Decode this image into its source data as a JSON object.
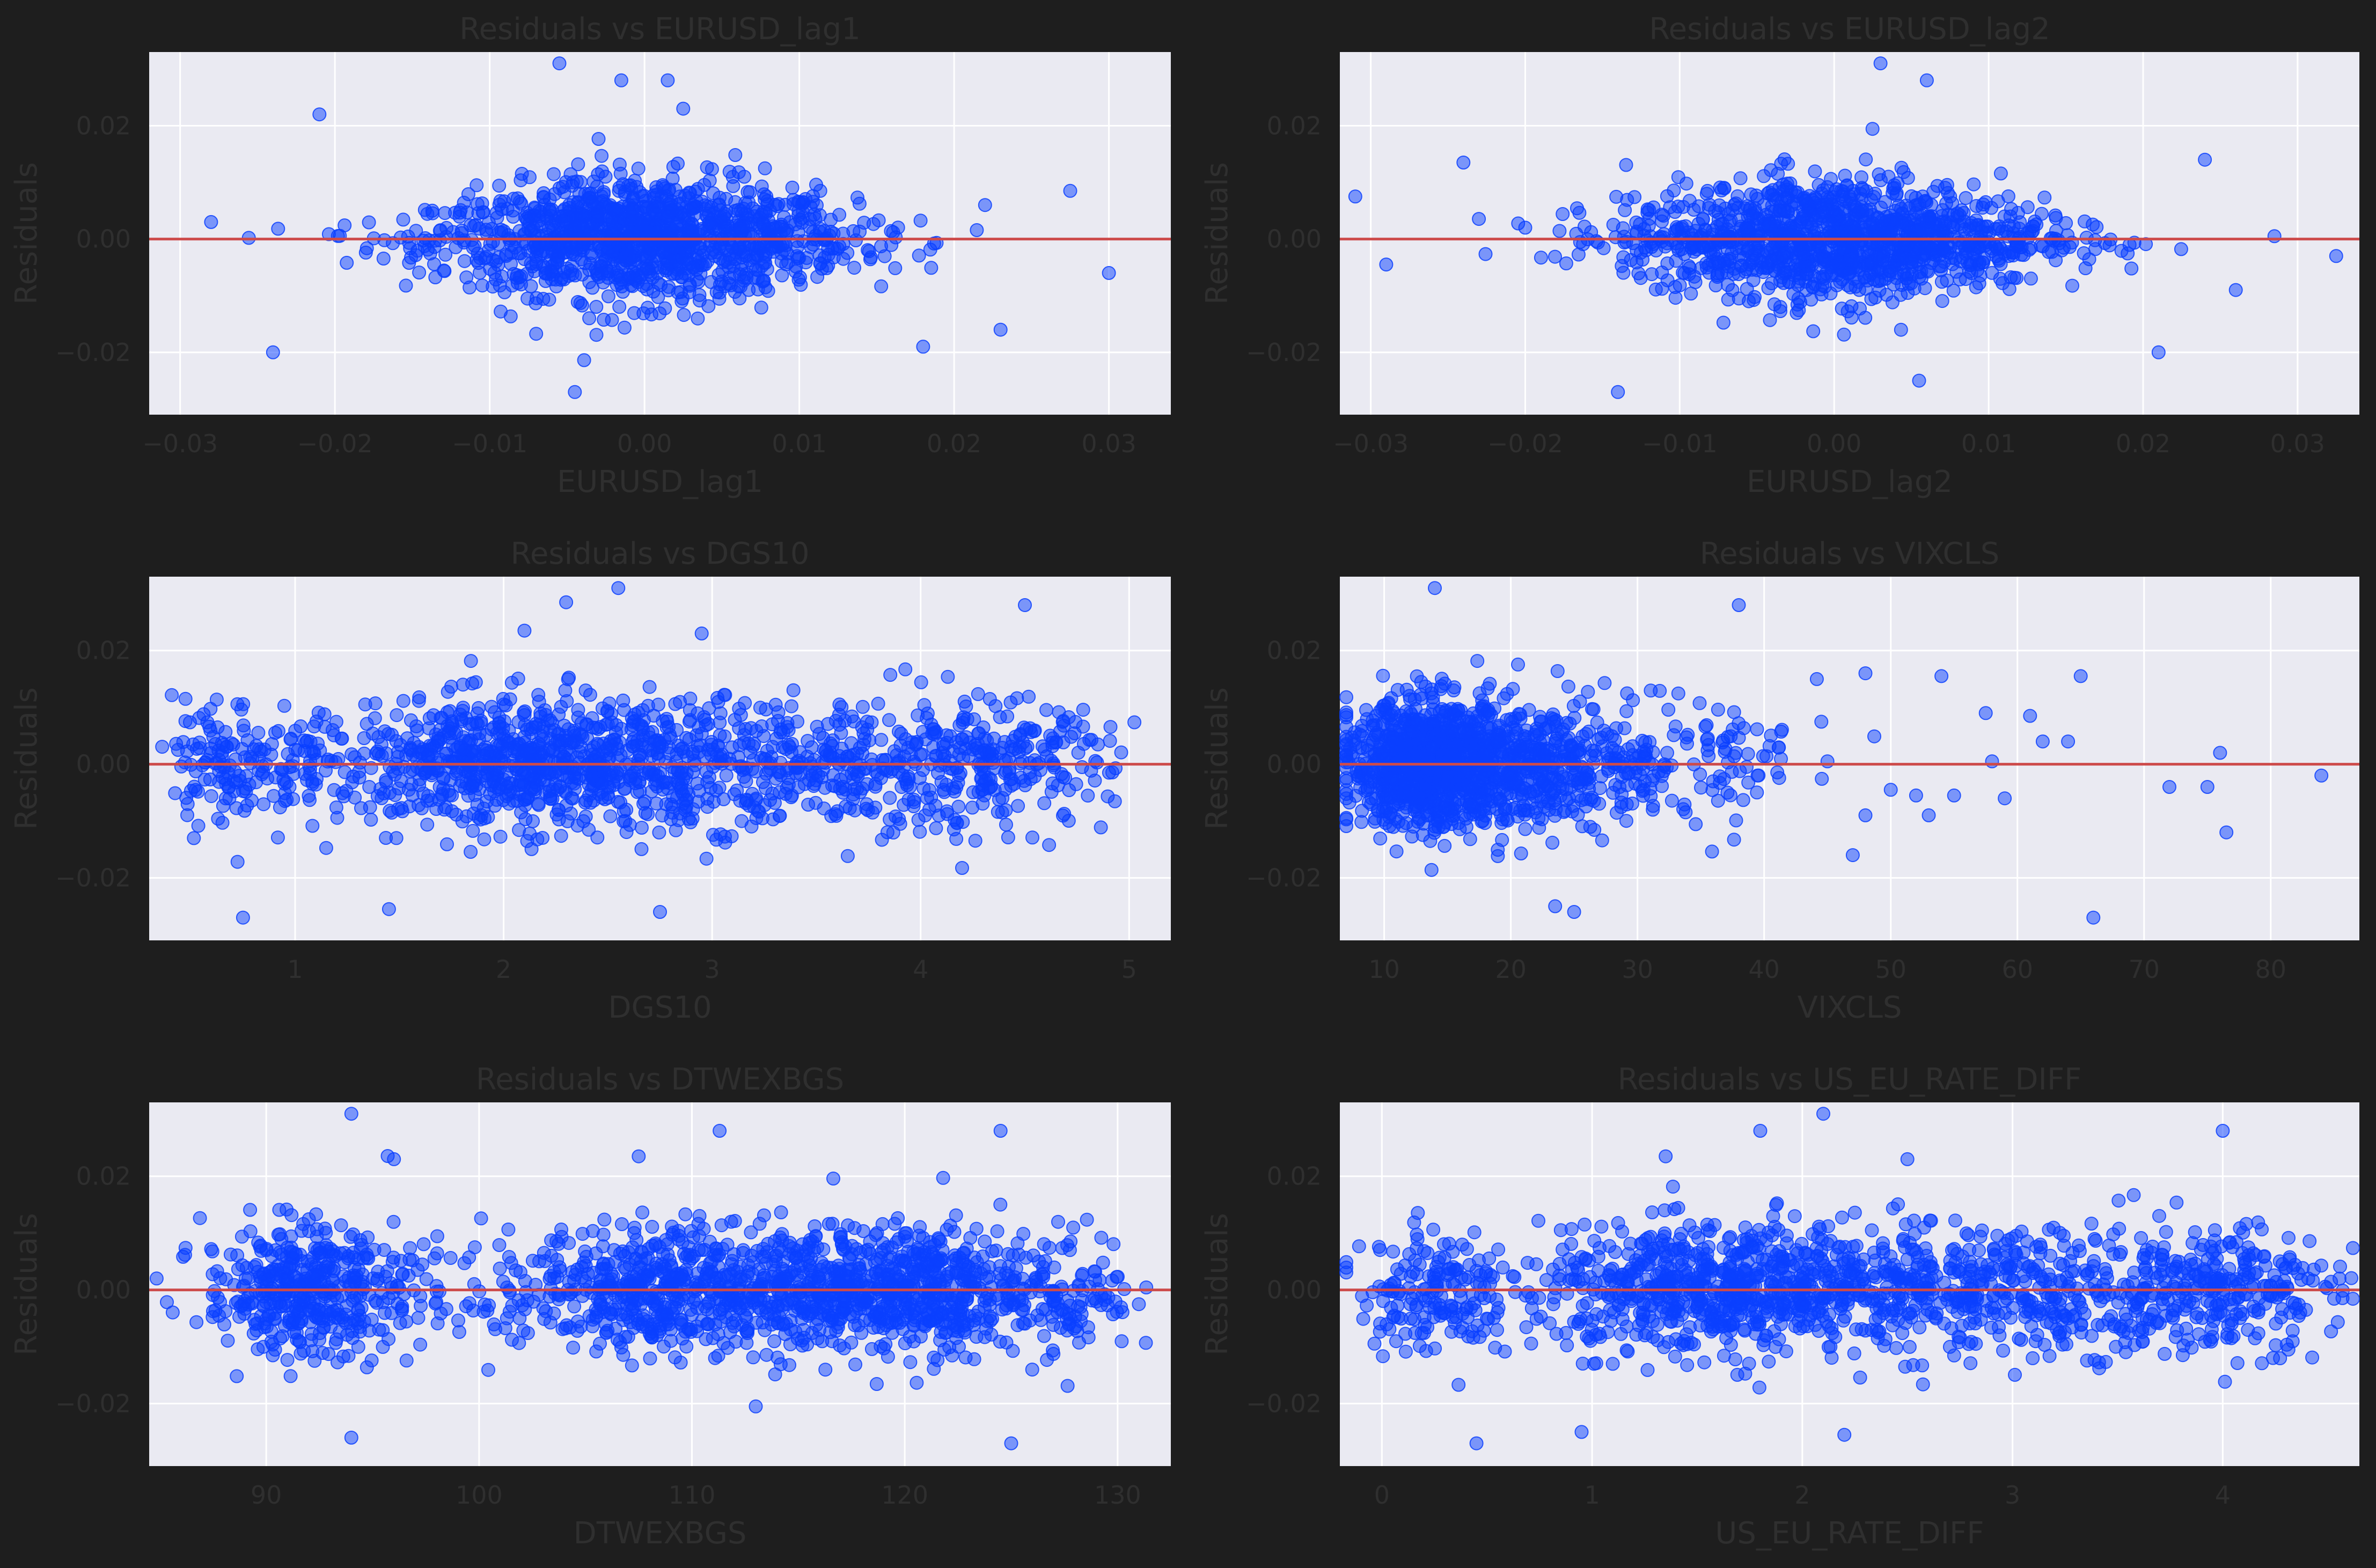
{
  "colors": {
    "background": "#1e1e1e",
    "plot_bg": "#eaeaf2",
    "point": "#0a40ff",
    "reference_line": "#cd4b4b",
    "text": "#2f2f2f"
  },
  "chart_data": [
    {
      "type": "scatter",
      "title": "Residuals vs EURUSD_lag1",
      "xlabel": "EURUSD_lag1",
      "ylabel": "Residuals",
      "xlim": [
        -0.032,
        0.034
      ],
      "ylim": [
        -0.031,
        0.033
      ],
      "xticks": [
        -0.03,
        -0.02,
        -0.01,
        0.0,
        0.01,
        0.02,
        0.03
      ],
      "xtick_labels": [
        "−0.03",
        "−0.02",
        "−0.01",
        "0.00",
        "0.01",
        "0.02",
        "0.03"
      ],
      "yticks": [
        -0.02,
        0.0,
        0.02
      ],
      "ytick_labels": [
        "−0.02",
        "0.00",
        "0.02"
      ],
      "reference_line_y": 0.0,
      "grid": true,
      "cloud": {
        "center": 0.0,
        "spread": 0.0068,
        "resid_sd": 0.0055,
        "n": 1300
      },
      "outliers": [
        [
          -0.0055,
          0.031
        ],
        [
          -0.0045,
          -0.027
        ],
        [
          0.0015,
          0.028
        ],
        [
          0.0025,
          0.023
        ],
        [
          -0.0015,
          0.028
        ],
        [
          0.0275,
          0.0085
        ],
        [
          0.03,
          -0.006
        ],
        [
          0.023,
          -0.016
        ],
        [
          -0.028,
          0.003
        ],
        [
          -0.024,
          -0.02
        ],
        [
          0.022,
          0.006
        ],
        [
          -0.021,
          0.022
        ],
        [
          0.018,
          -0.019
        ]
      ]
    },
    {
      "type": "scatter",
      "title": "Residuals vs EURUSD_lag2",
      "xlabel": "EURUSD_lag2",
      "ylabel": "Residuals",
      "xlim": [
        -0.032,
        0.034
      ],
      "ylim": [
        -0.031,
        0.033
      ],
      "xticks": [
        -0.03,
        -0.02,
        -0.01,
        0.0,
        0.01,
        0.02,
        0.03
      ],
      "xtick_labels": [
        "−0.03",
        "−0.02",
        "−0.01",
        "0.00",
        "0.01",
        "0.02",
        "0.03"
      ],
      "yticks": [
        -0.02,
        0.0,
        0.02
      ],
      "ytick_labels": [
        "−0.02",
        "0.00",
        "0.02"
      ],
      "reference_line_y": 0.0,
      "grid": true,
      "cloud": {
        "center": 0.0,
        "spread": 0.0068,
        "resid_sd": 0.0055,
        "n": 1300
      },
      "outliers": [
        [
          0.003,
          0.031
        ],
        [
          0.006,
          0.028
        ],
        [
          -0.014,
          -0.027
        ],
        [
          0.0325,
          -0.003
        ],
        [
          0.0285,
          0.0005
        ],
        [
          0.024,
          0.014
        ],
        [
          0.021,
          -0.02
        ],
        [
          -0.031,
          0.0075
        ],
        [
          -0.029,
          -0.0045
        ],
        [
          0.0055,
          -0.025
        ],
        [
          0.026,
          -0.009
        ],
        [
          -0.024,
          0.0135
        ]
      ]
    },
    {
      "type": "scatter",
      "title": "Residuals vs DGS10",
      "xlabel": "DGS10",
      "ylabel": "Residuals",
      "xlim": [
        0.3,
        5.2
      ],
      "ylim": [
        -0.031,
        0.033
      ],
      "xticks": [
        1,
        2,
        3,
        4,
        5
      ],
      "xtick_labels": [
        "1",
        "2",
        "3",
        "4",
        "5"
      ],
      "yticks": [
        -0.02,
        0.0,
        0.02
      ],
      "ytick_labels": [
        "−0.02",
        "0.00",
        "0.02"
      ],
      "reference_line_y": 0.0,
      "grid": true,
      "clusters": [
        {
          "center": 0.65,
          "spread": 0.12,
          "n": 120
        },
        {
          "center": 1.05,
          "spread": 0.1,
          "n": 60
        },
        {
          "center": 2.0,
          "spread": 0.38,
          "n": 700
        },
        {
          "center": 2.85,
          "spread": 0.3,
          "n": 320
        },
        {
          "center": 3.6,
          "spread": 0.25,
          "n": 200
        },
        {
          "center": 4.3,
          "spread": 0.3,
          "n": 280
        }
      ],
      "resid_sd": 0.0055,
      "outliers": [
        [
          2.55,
          0.031
        ],
        [
          2.3,
          0.0285
        ],
        [
          0.75,
          -0.027
        ],
        [
          1.45,
          -0.0255
        ],
        [
          2.75,
          -0.026
        ],
        [
          4.5,
          0.028
        ],
        [
          2.95,
          0.023
        ],
        [
          2.1,
          0.0235
        ]
      ]
    },
    {
      "type": "scatter",
      "title": "Residuals vs VIXCLS",
      "xlabel": "VIXCLS",
      "ylabel": "Residuals",
      "xlim": [
        6.5,
        87
      ],
      "ylim": [
        -0.031,
        0.033
      ],
      "xticks": [
        10,
        20,
        30,
        40,
        50,
        60,
        70,
        80
      ],
      "xtick_labels": [
        "10",
        "20",
        "30",
        "40",
        "50",
        "60",
        "70",
        "80"
      ],
      "yticks": [
        -0.02,
        0.0,
        0.02
      ],
      "ytick_labels": [
        "−0.02",
        "0.00",
        "0.02"
      ],
      "reference_line_y": 0.0,
      "grid": true,
      "clusters": [
        {
          "center": 13.5,
          "spread": 3.2,
          "n": 900
        },
        {
          "center": 20.5,
          "spread": 4.5,
          "n": 450
        },
        {
          "center": 30.0,
          "spread": 4.0,
          "n": 130
        },
        {
          "center": 39.0,
          "spread": 3.5,
          "n": 40
        }
      ],
      "resid_sd": 0.0055,
      "outliers": [
        [
          14,
          0.031
        ],
        [
          38,
          0.028
        ],
        [
          66,
          -0.027
        ],
        [
          25,
          -0.026
        ],
        [
          23.5,
          -0.025
        ],
        [
          48,
          0.016
        ],
        [
          54,
          0.0155
        ],
        [
          57.5,
          0.009
        ],
        [
          61,
          0.0085
        ],
        [
          65,
          0.0155
        ],
        [
          64,
          0.004
        ],
        [
          62,
          0.004
        ],
        [
          58,
          0.0005
        ],
        [
          55,
          -0.0055
        ],
        [
          52,
          -0.0055
        ],
        [
          50,
          -0.0045
        ],
        [
          53,
          -0.009
        ],
        [
          59,
          -0.006
        ],
        [
          72,
          -0.004
        ],
        [
          75,
          -0.004
        ],
        [
          76,
          0.002
        ],
        [
          76.5,
          -0.012
        ],
        [
          84,
          -0.002
        ],
        [
          47,
          -0.016
        ],
        [
          48,
          -0.009
        ],
        [
          45,
          0.0005
        ]
      ]
    },
    {
      "type": "scatter",
      "title": "Residuals vs DTWEXBGS",
      "xlabel": "DTWEXBGS",
      "ylabel": "Residuals",
      "xlim": [
        84.5,
        132.5
      ],
      "ylim": [
        -0.031,
        0.033
      ],
      "xticks": [
        90,
        100,
        110,
        120,
        130
      ],
      "xtick_labels": [
        "90",
        "100",
        "110",
        "120",
        "130"
      ],
      "yticks": [
        -0.02,
        0.0,
        0.02
      ],
      "ytick_labels": [
        "−0.02",
        "0.00",
        "0.02"
      ],
      "reference_line_y": 0.0,
      "grid": true,
      "clusters": [
        {
          "center": 91.5,
          "spread": 2.2,
          "n": 420
        },
        {
          "center": 97.0,
          "spread": 1.3,
          "n": 50
        },
        {
          "center": 101.5,
          "spread": 1.2,
          "n": 30
        },
        {
          "center": 108.0,
          "spread": 2.8,
          "n": 450
        },
        {
          "center": 115.5,
          "spread": 2.6,
          "n": 420
        },
        {
          "center": 121.0,
          "spread": 2.2,
          "n": 400
        },
        {
          "center": 127.5,
          "spread": 1.6,
          "n": 130
        }
      ],
      "resid_sd": 0.0055,
      "outliers": [
        [
          94,
          0.031
        ],
        [
          111.3,
          0.028
        ],
        [
          124.5,
          0.028
        ],
        [
          107.5,
          0.0235
        ],
        [
          94,
          -0.026
        ],
        [
          125,
          -0.027
        ],
        [
          113,
          -0.0205
        ],
        [
          96,
          0.023
        ]
      ]
    },
    {
      "type": "scatter",
      "title": "Residuals vs US_EU_RATE_DIFF",
      "xlabel": "US_EU_RATE_DIFF",
      "ylabel": "Residuals",
      "xlim": [
        -0.2,
        4.65
      ],
      "ylim": [
        -0.031,
        0.033
      ],
      "xticks": [
        0,
        1,
        2,
        3,
        4
      ],
      "xtick_labels": [
        "0",
        "1",
        "2",
        "3",
        "4"
      ],
      "yticks": [
        -0.02,
        0.0,
        0.02
      ],
      "ytick_labels": [
        "−0.02",
        "0.00",
        "0.02"
      ],
      "reference_line_y": 0.0,
      "grid": true,
      "clusters": [
        {
          "center": 0.25,
          "spread": 0.18,
          "n": 180
        },
        {
          "center": 1.55,
          "spread": 0.4,
          "n": 650
        },
        {
          "center": 2.4,
          "spread": 0.3,
          "n": 300
        },
        {
          "center": 3.2,
          "spread": 0.3,
          "n": 240
        },
        {
          "center": 3.95,
          "spread": 0.3,
          "n": 300
        }
      ],
      "resid_sd": 0.0055,
      "outliers": [
        [
          2.1,
          0.031
        ],
        [
          1.8,
          0.028
        ],
        [
          4.0,
          0.028
        ],
        [
          0.45,
          -0.027
        ],
        [
          2.2,
          -0.0255
        ],
        [
          0.95,
          -0.025
        ],
        [
          2.5,
          0.023
        ],
        [
          1.35,
          0.0235
        ]
      ]
    }
  ]
}
